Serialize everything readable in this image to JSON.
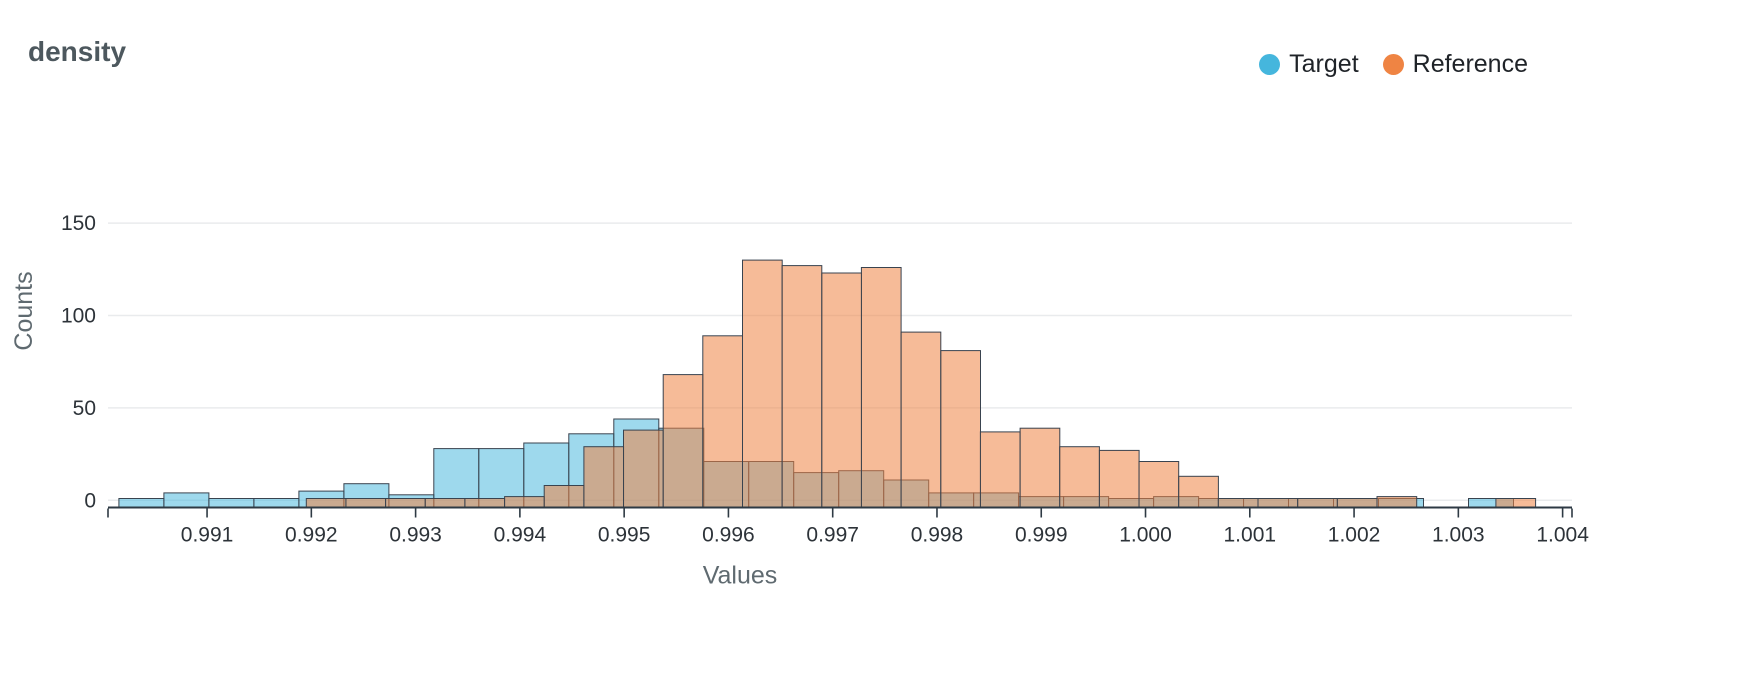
{
  "header": {
    "title": "density"
  },
  "legend": {
    "items": [
      {
        "label": "Target",
        "color": "#45b6dd"
      },
      {
        "label": "Reference",
        "color": "#ef8443"
      }
    ]
  },
  "chart_data": {
    "type": "histogram",
    "mode": "overlay",
    "title": "density",
    "xlabel": "Values",
    "ylabel": "Counts",
    "x_ticks": [
      0.991,
      0.992,
      0.993,
      0.994,
      0.995,
      0.996,
      0.997,
      0.998,
      0.999,
      1.0,
      1.001,
      1.002,
      1.003,
      1.004
    ],
    "x_tick_decimals": 3,
    "y_ticks": [
      0,
      50,
      100,
      150
    ],
    "x_range": [
      0.99005,
      1.00409
    ],
    "y_range": [
      -3.9,
      169
    ],
    "grid": true,
    "legend_position": "top-right",
    "outline_color": "#39434f",
    "axis_line_color": "#2e3a44",
    "grid_color": "#e9ebed",
    "tick_label_color": "#2d3339",
    "axis_title_color": "#5f6a70",
    "series": [
      {
        "name": "Target",
        "color": "#45b6dd",
        "fill_opacity": 0.52,
        "bin_start": 0.990155,
        "bin_width": 0.0004314,
        "counts": [
          1,
          4,
          1,
          1,
          5,
          9,
          3,
          28,
          28,
          31,
          36,
          44,
          39,
          21,
          21,
          15,
          16,
          11,
          4,
          4,
          2,
          2,
          1,
          2,
          1,
          1,
          1,
          1,
          1,
          0,
          1,
          0
        ]
      },
      {
        "name": "Reference",
        "color": "#ef8443",
        "fill_opacity": 0.55,
        "bin_start": 0.99005,
        "bin_width": 0.0003803,
        "counts": [
          0,
          0,
          0,
          0,
          0,
          1,
          1,
          1,
          1,
          1,
          2,
          8,
          29,
          38,
          68,
          89,
          130,
          127,
          123,
          126,
          91,
          81,
          37,
          39,
          29,
          27,
          21,
          13,
          1,
          1,
          1,
          1,
          2,
          0,
          0,
          1,
          0
        ]
      }
    ]
  }
}
